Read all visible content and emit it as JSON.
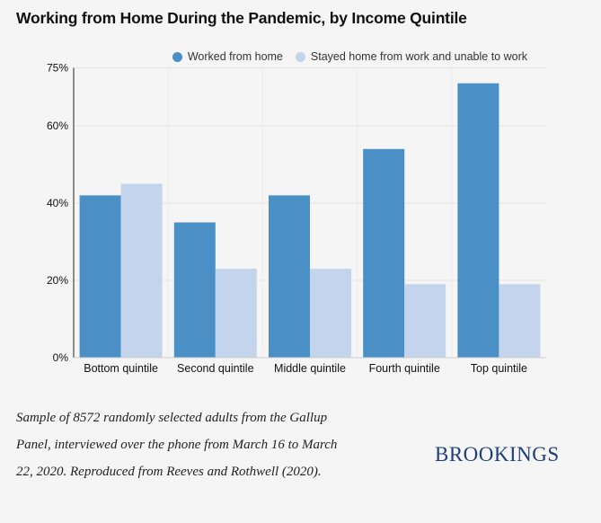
{
  "title": "Working from Home During the Pandemic, by Income Quintile",
  "legend": [
    {
      "label": "Worked from home",
      "color": "#4a8fc6"
    },
    {
      "label": "Stayed home from work and unable to work",
      "color": "#c3d4ec"
    }
  ],
  "chart_data": {
    "type": "bar",
    "categories": [
      "Bottom quintile",
      "Second quintile",
      "Middle quintile",
      "Fourth quintile",
      "Top quintile"
    ],
    "series": [
      {
        "name": "Worked from home",
        "values": [
          42,
          35,
          42,
          54,
          71
        ],
        "color": "#4a8fc6"
      },
      {
        "name": "Stayed home from work and unable to work",
        "values": [
          45,
          23,
          23,
          19,
          19
        ],
        "color": "#c3d4ec"
      }
    ],
    "yticks": [
      {
        "value": 0,
        "label": "0%"
      },
      {
        "value": 20,
        "label": "20%"
      },
      {
        "value": 40,
        "label": "40%"
      },
      {
        "value": 60,
        "label": "60%"
      },
      {
        "value": 75,
        "label": "75%"
      }
    ],
    "ylim": [
      0,
      75
    ],
    "grid": true,
    "legend_position": "top-right"
  },
  "footnote": "Sample of 8572 randomly selected adults from the Gallup Panel, interviewed over the phone from March 16 to March 22, 2020. Reproduced from Reeves and Rothwell (2020).",
  "logo_text": "BROOKINGS"
}
